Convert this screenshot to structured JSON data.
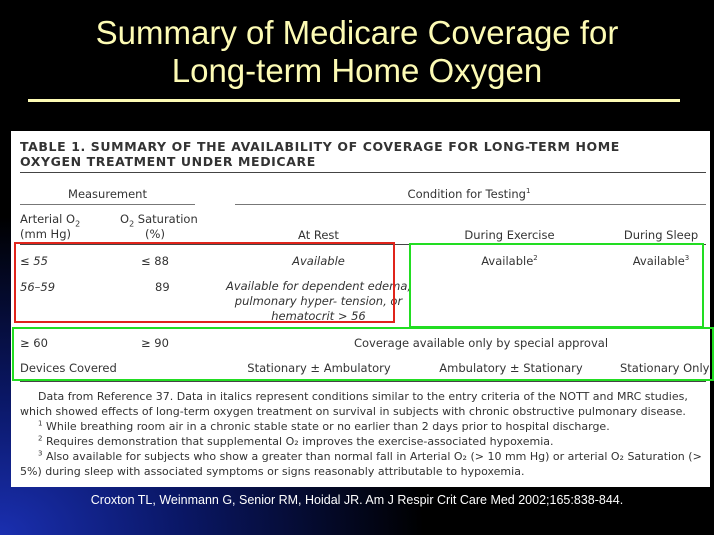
{
  "slide": {
    "title_line1": "Summary of Medicare Coverage for",
    "title_line2": "Long-term Home Oxygen"
  },
  "table": {
    "title": "TABLE 1. SUMMARY OF THE AVAILABILITY OF COVERAGE FOR LONG-TERM HOME OXYGEN TREATMENT UNDER MEDICARE",
    "group_headers": {
      "measurement": "Measurement",
      "condition": "Condition for Testing",
      "condition_note": "1"
    },
    "columns": {
      "arterial_line1": "Arterial O",
      "arterial_sub": "2",
      "arterial_line2": "(mm Hg)",
      "saturation_line1": "O",
      "saturation_sub": "2",
      "saturation_line1b": " Saturation",
      "saturation_line2": "(%)",
      "at_rest": "At Rest",
      "during_exercise": "During Exercise",
      "during_sleep": "During Sleep"
    },
    "rows": [
      {
        "arterial": "≤ 55",
        "saturation": "≤ 88",
        "at_rest": "Available",
        "exercise": "Available",
        "exercise_note": "2",
        "sleep": "Available",
        "sleep_note": "3"
      },
      {
        "arterial": "56–59",
        "saturation": "89",
        "at_rest": "Available for dependent edema, pulmonary hyper- tension, or hematocrit > 56"
      },
      {
        "arterial": "≥ 60",
        "saturation": "≥ 90",
        "span_text": "Coverage available only by special approval"
      }
    ],
    "devices": {
      "label": "Devices Covered",
      "at_rest": "Stationary ± Ambulatory",
      "exercise": "Ambulatory ± Stationary",
      "sleep": "Stationary Only"
    },
    "footnotes": {
      "intro": "Data from Reference 37. Data in italics represent conditions similar to the entry criteria of the NOTT and MRC studies, which showed effects of long-term oxygen treatment on survival in subjects with chronic obstructive pulmonary disease.",
      "n1_mark": "1",
      "n1": " While breathing room air in a chronic stable state or no earlier than 2 days prior to hospital discharge.",
      "n2_mark": "2",
      "n2": " Requires demonstration that supplemental O₂ improves the exercise-associated hypoxemia.",
      "n3_mark": "3",
      "n3": " Also available for subjects who show a greater than normal fall in Arterial O₂ (> 10 mm Hg) or arterial O₂ Saturation (> 5%) during sleep with associated symptoms or signs reasonably attributable to hypoxemia."
    }
  },
  "highlights": {
    "red_color": "#e0241b",
    "green_color": "#22dd22"
  },
  "citation": "Croxton TL, Weinmann G, Senior RM, Hoidal JR. Am J Respir Crit Care Med 2002;165:838-844."
}
